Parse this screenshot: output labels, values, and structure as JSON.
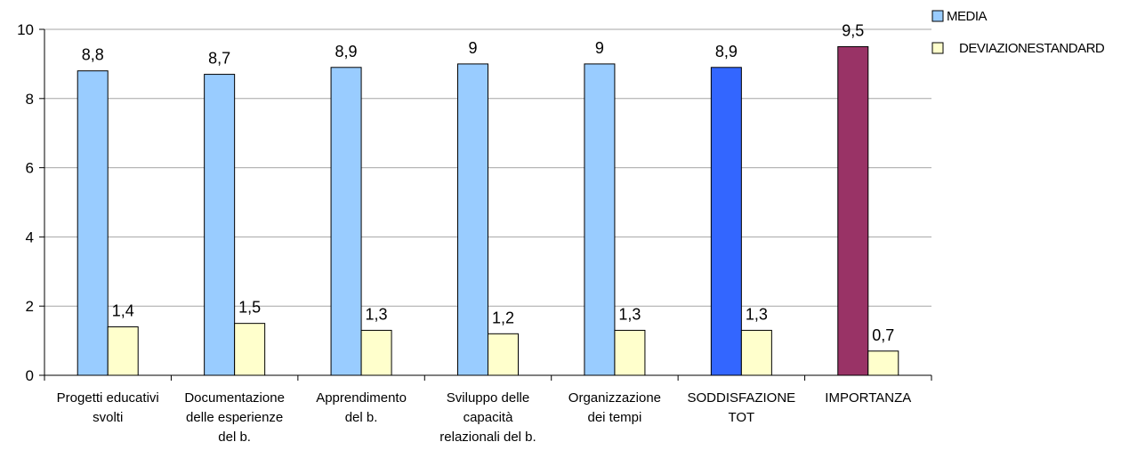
{
  "chart_data": {
    "type": "bar",
    "categories": [
      [
        "Progetti educativi",
        "svolti"
      ],
      [
        "Documentazione",
        "delle esperienze",
        "del b."
      ],
      [
        "Apprendimento",
        "del b."
      ],
      [
        "Sviluppo delle",
        "capacità",
        "relazionali del b."
      ],
      [
        "Organizzazione",
        "dei tempi"
      ],
      [
        "SODDISFAZIONE",
        "TOT"
      ],
      [
        "IMPORTANZA"
      ]
    ],
    "series": [
      {
        "name": "MEDIA",
        "values": [
          8.8,
          8.7,
          8.9,
          9,
          9,
          8.9,
          9.5
        ],
        "labels": [
          "8,8",
          "8,7",
          "8,9",
          "9",
          "9",
          "8,9",
          "9,5"
        ],
        "color": "#99ccff",
        "point_colors": [
          "#99ccff",
          "#99ccff",
          "#99ccff",
          "#99ccff",
          "#99ccff",
          "#3366ff",
          "#993366"
        ]
      },
      {
        "name": "DEVIAZIONESTANDARD",
        "values": [
          1.4,
          1.5,
          1.3,
          1.2,
          1.3,
          1.3,
          0.7
        ],
        "labels": [
          "1,4",
          "1,5",
          "1,3",
          "1,2",
          "1,3",
          "1,3",
          "0,7"
        ],
        "color": "#ffffcc"
      }
    ],
    "yticks": [
      0,
      2,
      4,
      6,
      8,
      10
    ],
    "ylim": [
      0,
      10
    ],
    "grid": true,
    "legend": "top-right"
  }
}
